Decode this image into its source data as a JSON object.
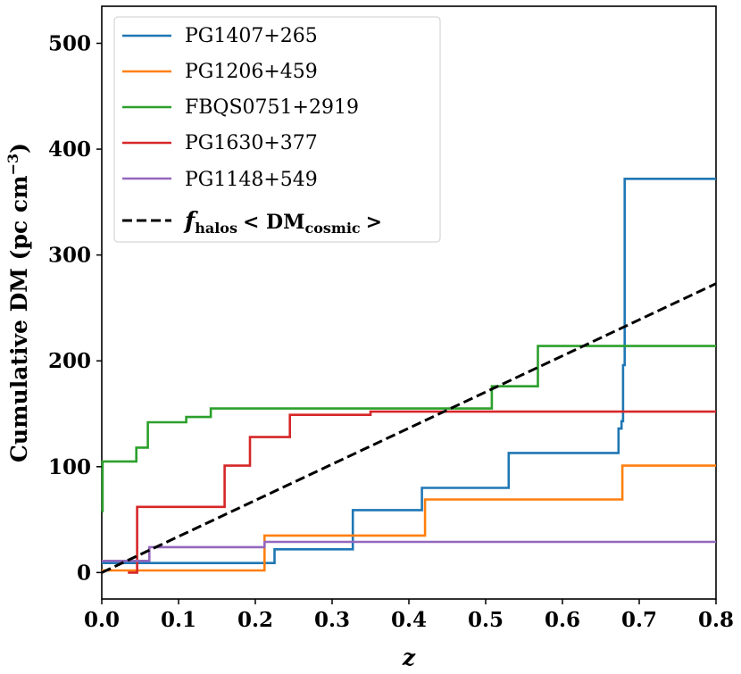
{
  "chart_data": {
    "type": "line",
    "xlabel": "z",
    "ylabel": "Cumulative DM (pc cm",
    "ylabel_exponent": "−3",
    "ylabel_close": ")",
    "xlim": [
      0.0,
      0.8
    ],
    "ylim": [
      -25,
      535
    ],
    "xticks": [
      0.0,
      0.1,
      0.2,
      0.3,
      0.4,
      0.5,
      0.6,
      0.7,
      0.8
    ],
    "xtick_labels": [
      "0.0",
      "0.1",
      "0.2",
      "0.3",
      "0.4",
      "0.5",
      "0.6",
      "0.7",
      "0.8"
    ],
    "yticks": [
      0,
      100,
      200,
      300,
      400,
      500
    ],
    "ytick_labels": [
      "0",
      "100",
      "200",
      "300",
      "400",
      "500"
    ],
    "grid": false,
    "legend_position": "top-left",
    "series": [
      {
        "name": "PG1407+265",
        "color": "#1f77b4",
        "style": "step",
        "x": [
          0.0,
          0.225,
          0.225,
          0.327,
          0.327,
          0.417,
          0.417,
          0.53,
          0.53,
          0.673,
          0.673,
          0.677,
          0.677,
          0.679,
          0.679,
          0.681,
          0.681,
          0.8
        ],
        "y": [
          9,
          9,
          22,
          22,
          59,
          59,
          80,
          80,
          113,
          113,
          136,
          136,
          143,
          143,
          196,
          196,
          372,
          372
        ]
      },
      {
        "name": "PG1206+459",
        "color": "#ff7f0e",
        "style": "step",
        "x": [
          0.0,
          0.212,
          0.212,
          0.421,
          0.421,
          0.678,
          0.678,
          0.8
        ],
        "y": [
          2,
          2,
          35,
          35,
          69,
          69,
          101,
          101
        ]
      },
      {
        "name": "FBQS0751+2919",
        "color": "#2ca02c",
        "style": "step",
        "x": [
          0.0,
          0.0,
          0.001,
          0.001,
          0.045,
          0.045,
          0.06,
          0.06,
          0.11,
          0.11,
          0.142,
          0.142,
          0.508,
          0.508,
          0.568,
          0.568,
          0.8
        ],
        "y": [
          58,
          58,
          58,
          105,
          105,
          118,
          118,
          142,
          142,
          147,
          147,
          155,
          155,
          176,
          176,
          214,
          214
        ]
      },
      {
        "name": "PG1630+377",
        "color": "#d62728",
        "style": "step",
        "x": [
          0.034,
          0.046,
          0.046,
          0.16,
          0.16,
          0.193,
          0.193,
          0.245,
          0.245,
          0.35,
          0.35,
          0.8
        ],
        "y": [
          0,
          0,
          62,
          62,
          101,
          101,
          128,
          128,
          149,
          149,
          152,
          152
        ]
      },
      {
        "name": "PG1148+549",
        "color": "#9467bd",
        "style": "step",
        "x": [
          0.0,
          0.062,
          0.062,
          0.212,
          0.212,
          0.8
        ],
        "y": [
          11,
          11,
          24,
          24,
          29,
          29
        ]
      },
      {
        "name": "f_halos < DM_cosmic >",
        "color": "#000000",
        "style": "dashed",
        "x": [
          0.0,
          0.8
        ],
        "y": [
          0,
          273
        ]
      }
    ],
    "legend": {
      "entries": [
        {
          "label": "PG1407+265"
        },
        {
          "label": "PG1206+459"
        },
        {
          "label": "FBQS0751+2919"
        },
        {
          "label": "PG1630+377"
        },
        {
          "label": "PG1148+549"
        },
        {
          "label_parts": [
            "f",
            "halos",
            "< DM",
            "cosmic",
            ">"
          ]
        }
      ]
    }
  }
}
